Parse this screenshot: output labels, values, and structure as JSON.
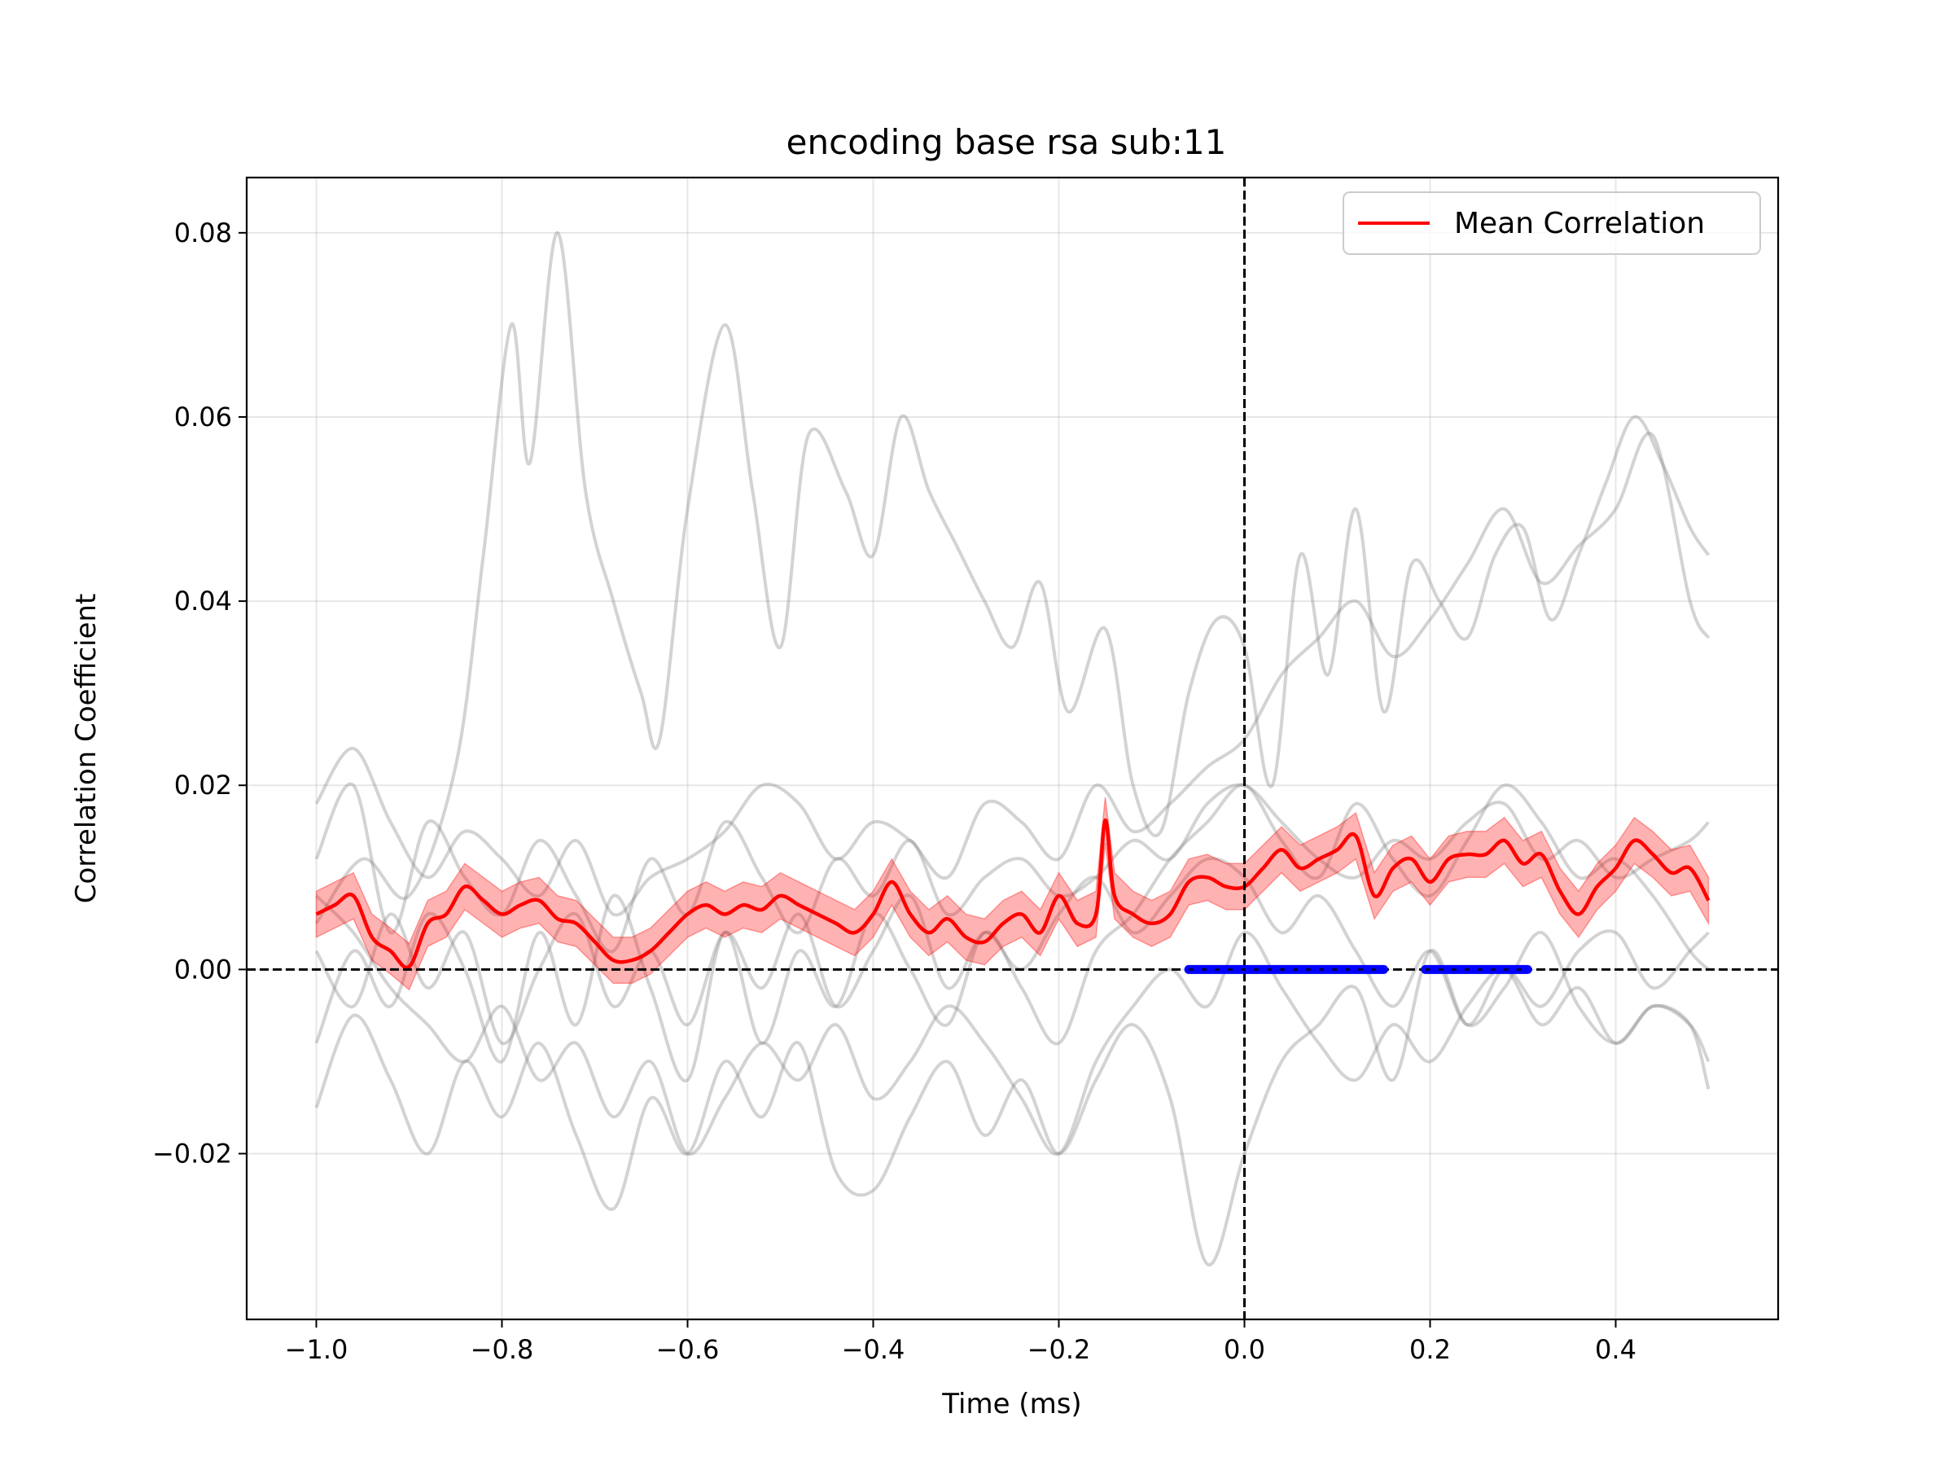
{
  "chart_data": {
    "type": "line",
    "title": "encoding base rsa sub:11",
    "xlabel": "Time (ms)",
    "ylabel": "Correlation Coefficient",
    "xlim": [
      -1.075,
      0.575
    ],
    "ylim": [
      -0.038,
      0.086
    ],
    "xticks": [
      -1.0,
      -0.8,
      -0.6,
      -0.4,
      -0.2,
      0.0,
      0.2,
      0.4
    ],
    "xtick_labels": [
      "−1.0",
      "−0.8",
      "−0.6",
      "−0.4",
      "−0.2",
      "0.0",
      "0.2",
      "0.4"
    ],
    "yticks": [
      -0.02,
      0.0,
      0.02,
      0.04,
      0.06,
      0.08
    ],
    "ytick_labels": [
      "−0.02",
      "0.00",
      "0.02",
      "0.04",
      "0.06",
      "0.08"
    ],
    "grid": true,
    "legend": {
      "position": "upper right",
      "entries": [
        "Mean Correlation"
      ]
    },
    "colors": {
      "mean": "#ff0000",
      "band": "#ff0000",
      "individual": "#808080",
      "significance": "#0000ff"
    },
    "reference_lines": {
      "vertical_x": 0.0,
      "horizontal_y": 0.0,
      "style": "dashed"
    },
    "mean_series": {
      "name": "Mean Correlation",
      "x": [
        -1.0,
        -0.98,
        -0.96,
        -0.94,
        -0.92,
        -0.9,
        -0.88,
        -0.86,
        -0.84,
        -0.82,
        -0.8,
        -0.78,
        -0.76,
        -0.74,
        -0.72,
        -0.7,
        -0.68,
        -0.66,
        -0.64,
        -0.62,
        -0.6,
        -0.58,
        -0.56,
        -0.54,
        -0.52,
        -0.5,
        -0.48,
        -0.46,
        -0.44,
        -0.42,
        -0.4,
        -0.38,
        -0.36,
        -0.34,
        -0.32,
        -0.3,
        -0.28,
        -0.26,
        -0.24,
        -0.22,
        -0.2,
        -0.18,
        -0.16,
        -0.15,
        -0.14,
        -0.12,
        -0.1,
        -0.08,
        -0.06,
        -0.04,
        -0.02,
        0.0,
        0.02,
        0.04,
        0.06,
        0.08,
        0.1,
        0.12,
        0.14,
        0.16,
        0.18,
        0.2,
        0.22,
        0.24,
        0.26,
        0.28,
        0.3,
        0.32,
        0.34,
        0.36,
        0.38,
        0.4,
        0.42,
        0.44,
        0.46,
        0.48,
        0.5
      ],
      "y": [
        0.006,
        0.007,
        0.008,
        0.0035,
        0.002,
        0.0003,
        0.005,
        0.006,
        0.009,
        0.0075,
        0.006,
        0.007,
        0.0075,
        0.0055,
        0.005,
        0.003,
        0.001,
        0.001,
        0.002,
        0.004,
        0.006,
        0.007,
        0.006,
        0.007,
        0.0065,
        0.008,
        0.007,
        0.006,
        0.005,
        0.004,
        0.006,
        0.0095,
        0.006,
        0.004,
        0.0055,
        0.0035,
        0.003,
        0.005,
        0.006,
        0.004,
        0.008,
        0.005,
        0.006,
        0.0162,
        0.008,
        0.006,
        0.005,
        0.006,
        0.0095,
        0.01,
        0.009,
        0.009,
        0.011,
        0.013,
        0.011,
        0.012,
        0.013,
        0.0145,
        0.008,
        0.011,
        0.012,
        0.0095,
        0.012,
        0.0125,
        0.0125,
        0.014,
        0.0115,
        0.0125,
        0.0085,
        0.006,
        0.009,
        0.011,
        0.014,
        0.0125,
        0.0105,
        0.011,
        0.0075
      ],
      "sem": 0.0025
    },
    "individual_series": [
      {
        "x": [
          -1.0,
          -0.95,
          -0.9,
          -0.85,
          -0.82,
          -0.79,
          -0.77,
          -0.74,
          -0.71,
          -0.68,
          -0.65,
          -0.63,
          -0.6,
          -0.56,
          -0.53,
          -0.5,
          -0.47,
          -0.43,
          -0.4,
          -0.37,
          -0.34,
          -0.31,
          -0.28,
          -0.25,
          -0.22,
          -0.19,
          -0.15,
          -0.12,
          -0.09,
          -0.06,
          -0.03,
          0.0,
          0.03,
          0.06,
          0.09,
          0.12,
          0.15,
          0.18,
          0.21,
          0.24,
          0.27,
          0.3,
          0.33,
          0.36,
          0.39,
          0.42,
          0.45,
          0.48,
          0.5
        ],
        "y": [
          0.005,
          0.012,
          0.008,
          0.022,
          0.045,
          0.07,
          0.055,
          0.08,
          0.052,
          0.04,
          0.03,
          0.025,
          0.05,
          0.07,
          0.052,
          0.035,
          0.058,
          0.052,
          0.045,
          0.06,
          0.052,
          0.046,
          0.04,
          0.035,
          0.042,
          0.028,
          0.037,
          0.02,
          0.015,
          0.03,
          0.038,
          0.035,
          0.02,
          0.045,
          0.032,
          0.05,
          0.028,
          0.044,
          0.04,
          0.036,
          0.045,
          0.048,
          0.038,
          0.045,
          0.053,
          0.06,
          0.055,
          0.048,
          0.045
        ]
      },
      {
        "x": [
          -1.0,
          -0.96,
          -0.92,
          -0.88,
          -0.84,
          -0.8,
          -0.76,
          -0.72,
          -0.68,
          -0.64,
          -0.6,
          -0.56,
          -0.52,
          -0.48,
          -0.44,
          -0.4,
          -0.36,
          -0.32,
          -0.28,
          -0.24,
          -0.2,
          -0.16,
          -0.12,
          -0.08,
          -0.04,
          0.0,
          0.04,
          0.08,
          0.12,
          0.16,
          0.2,
          0.24,
          0.28,
          0.32,
          0.36,
          0.4,
          0.44,
          0.48,
          0.5
        ],
        "y": [
          0.018,
          0.024,
          0.016,
          0.01,
          0.015,
          0.012,
          0.008,
          0.014,
          0.006,
          0.01,
          0.012,
          0.015,
          0.02,
          0.018,
          0.012,
          0.016,
          0.014,
          0.01,
          0.018,
          0.016,
          0.012,
          0.02,
          0.015,
          0.018,
          0.022,
          0.025,
          0.032,
          0.036,
          0.04,
          0.034,
          0.038,
          0.044,
          0.05,
          0.042,
          0.046,
          0.05,
          0.058,
          0.04,
          0.036
        ]
      },
      {
        "x": [
          -1.0,
          -0.96,
          -0.92,
          -0.88,
          -0.84,
          -0.8,
          -0.76,
          -0.72,
          -0.68,
          -0.64,
          -0.6,
          -0.56,
          -0.52,
          -0.48,
          -0.44,
          -0.4,
          -0.36,
          -0.32,
          -0.28,
          -0.24,
          -0.2,
          -0.16,
          -0.12,
          -0.08,
          -0.04,
          0.0,
          0.04,
          0.08,
          0.12,
          0.16,
          0.2,
          0.24,
          0.28,
          0.32,
          0.36,
          0.4,
          0.44,
          0.48,
          0.5
        ],
        "y": [
          -0.008,
          0.002,
          -0.004,
          0.006,
          0.0,
          -0.01,
          0.004,
          -0.006,
          0.008,
          -0.002,
          -0.012,
          0.004,
          -0.008,
          0.002,
          -0.004,
          0.006,
          0.0,
          -0.006,
          0.004,
          -0.002,
          -0.008,
          0.002,
          0.006,
          0.012,
          0.016,
          0.02,
          0.014,
          0.01,
          0.018,
          0.012,
          0.008,
          0.014,
          0.02,
          0.016,
          0.01,
          0.012,
          0.008,
          0.002,
          0.0
        ]
      },
      {
        "x": [
          -1.0,
          -0.96,
          -0.92,
          -0.88,
          -0.84,
          -0.8,
          -0.76,
          -0.72,
          -0.68,
          -0.64,
          -0.6,
          -0.56,
          -0.52,
          -0.48,
          -0.44,
          -0.4,
          -0.36,
          -0.32,
          -0.28,
          -0.24,
          -0.2,
          -0.16,
          -0.12,
          -0.08,
          -0.04,
          0.0,
          0.04,
          0.08,
          0.12,
          0.16,
          0.2,
          0.24,
          0.28,
          0.32,
          0.36,
          0.4,
          0.44,
          0.48,
          0.5
        ],
        "y": [
          -0.015,
          -0.005,
          -0.012,
          -0.02,
          -0.01,
          -0.016,
          -0.008,
          -0.018,
          -0.026,
          -0.014,
          -0.02,
          -0.01,
          -0.016,
          -0.008,
          -0.022,
          -0.024,
          -0.016,
          -0.01,
          -0.018,
          -0.012,
          -0.02,
          -0.012,
          -0.006,
          -0.014,
          -0.032,
          -0.02,
          -0.01,
          -0.006,
          -0.002,
          -0.012,
          0.002,
          -0.006,
          -0.002,
          0.004,
          -0.004,
          -0.008,
          -0.004,
          -0.006,
          -0.013
        ]
      },
      {
        "x": [
          -1.0,
          -0.96,
          -0.92,
          -0.88,
          -0.84,
          -0.8,
          -0.76,
          -0.72,
          -0.68,
          -0.64,
          -0.6,
          -0.56,
          -0.52,
          -0.48,
          -0.44,
          -0.4,
          -0.36,
          -0.32,
          -0.28,
          -0.24,
          -0.2,
          -0.16,
          -0.12,
          -0.08,
          -0.04,
          0.0,
          0.04,
          0.08,
          0.12,
          0.16,
          0.2,
          0.24,
          0.28,
          0.32,
          0.36,
          0.4,
          0.44,
          0.48,
          0.5
        ],
        "y": [
          0.012,
          0.02,
          0.004,
          0.016,
          0.01,
          0.006,
          0.014,
          0.008,
          0.002,
          0.012,
          0.006,
          0.016,
          0.01,
          0.004,
          0.012,
          0.008,
          0.014,
          0.006,
          0.01,
          0.012,
          0.008,
          0.01,
          0.014,
          0.012,
          0.018,
          0.02,
          0.016,
          0.012,
          0.01,
          0.014,
          0.012,
          0.016,
          0.018,
          0.012,
          0.014,
          0.01,
          0.012,
          0.014,
          0.016
        ]
      },
      {
        "x": [
          -1.0,
          -0.96,
          -0.92,
          -0.88,
          -0.84,
          -0.8,
          -0.76,
          -0.72,
          -0.68,
          -0.64,
          -0.6,
          -0.56,
          -0.52,
          -0.48,
          -0.44,
          -0.4,
          -0.36,
          -0.32,
          -0.28,
          -0.24,
          -0.2,
          -0.16,
          -0.12,
          -0.08,
          -0.04,
          0.0,
          0.04,
          0.08,
          0.12,
          0.16,
          0.2,
          0.24,
          0.28,
          0.32,
          0.36,
          0.4,
          0.44,
          0.48,
          0.5
        ],
        "y": [
          0.002,
          -0.004,
          0.006,
          -0.002,
          0.004,
          -0.008,
          0.0,
          0.006,
          -0.004,
          0.002,
          -0.006,
          0.004,
          -0.002,
          0.006,
          -0.004,
          0.002,
          0.008,
          -0.002,
          0.004,
          0.0,
          0.006,
          0.01,
          0.004,
          0.008,
          0.012,
          0.01,
          0.004,
          0.008,
          0.002,
          -0.004,
          0.002,
          -0.006,
          0.0,
          -0.004,
          0.002,
          0.004,
          -0.002,
          0.002,
          0.004
        ]
      },
      {
        "x": [
          -1.0,
          -0.96,
          -0.92,
          -0.88,
          -0.84,
          -0.8,
          -0.76,
          -0.72,
          -0.68,
          -0.64,
          -0.6,
          -0.56,
          -0.52,
          -0.48,
          -0.44,
          -0.4,
          -0.36,
          -0.32,
          -0.28,
          -0.24,
          -0.2,
          -0.16,
          -0.12,
          -0.08,
          -0.04,
          0.0,
          0.04,
          0.08,
          0.12,
          0.16,
          0.2,
          0.24,
          0.28,
          0.32,
          0.36,
          0.4,
          0.44,
          0.48,
          0.5
        ],
        "y": [
          0.008,
          0.004,
          -0.002,
          -0.006,
          -0.01,
          -0.004,
          -0.012,
          -0.008,
          -0.016,
          -0.01,
          -0.02,
          -0.014,
          -0.008,
          -0.012,
          -0.006,
          -0.014,
          -0.01,
          -0.004,
          -0.008,
          -0.014,
          -0.02,
          -0.01,
          -0.004,
          0.0,
          -0.004,
          0.004,
          -0.002,
          -0.008,
          -0.012,
          -0.006,
          -0.01,
          -0.004,
          0.0,
          -0.006,
          -0.002,
          -0.008,
          -0.004,
          -0.006,
          -0.01
        ]
      }
    ],
    "significance_segments": [
      [
        -0.06,
        0.15
      ],
      [
        0.195,
        0.305
      ]
    ]
  }
}
